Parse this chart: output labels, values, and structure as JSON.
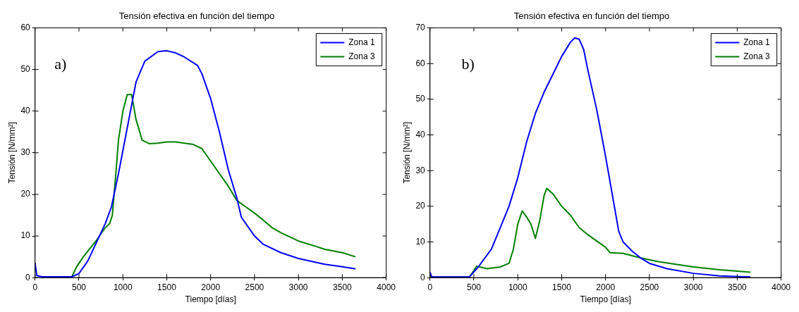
{
  "chart_data": [
    {
      "type": "line",
      "title": "Tensión efectiva en función del tiempo",
      "xlabel": "Tiempo [días]",
      "ylabel": "Tensión [N/mm²]",
      "annotations": [
        "a)"
      ],
      "xlim": [
        0,
        4000
      ],
      "xticks": [
        0,
        500,
        1000,
        1500,
        2000,
        2500,
        3000,
        3500,
        4000
      ],
      "ylim": [
        0,
        60
      ],
      "yticks": [
        0,
        10,
        20,
        30,
        40,
        50,
        60
      ],
      "grid": false,
      "legend": "top right",
      "marker": "none",
      "line_style": "solid",
      "series": [
        {
          "name": "Zona 1",
          "color": "#0000ff",
          "x": [
            0,
            20,
            80,
            420,
            500,
            600,
            700,
            800,
            870,
            950,
            1050,
            1150,
            1250,
            1400,
            1500,
            1600,
            1700,
            1850,
            1900,
            2000,
            2100,
            2200,
            2300,
            2350,
            2400,
            2500,
            2600,
            2800,
            3000,
            3300,
            3500,
            3650
          ],
          "values": [
            3.5,
            0.5,
            0.2,
            0.2,
            1,
            4,
            8.5,
            13,
            17,
            25,
            36,
            47,
            52,
            54.3,
            54.5,
            54,
            53,
            51,
            49,
            43,
            35,
            26,
            19,
            14.5,
            13,
            10,
            8,
            6,
            4.6,
            3.2,
            2.6,
            2.1
          ]
        },
        {
          "name": "Zona 3",
          "color": "#008000",
          "x": [
            100,
            420,
            470,
            550,
            700,
            800,
            850,
            880,
            920,
            950,
            1000,
            1050,
            1100,
            1150,
            1220,
            1300,
            1400,
            1500,
            1600,
            1800,
            1900,
            2000,
            2100,
            2200,
            2300,
            2400,
            2500,
            2600,
            2700,
            2800,
            3000,
            3200,
            3300,
            3500,
            3650
          ],
          "values": [
            0.2,
            0.2,
            2.5,
            5,
            9,
            12,
            13,
            15,
            25,
            33,
            40,
            44,
            44,
            38,
            33,
            32.2,
            32.3,
            32.6,
            32.6,
            32,
            31,
            28,
            25,
            22,
            18.5,
            17,
            15.5,
            13.8,
            12,
            10.8,
            8.8,
            7.5,
            6.8,
            6,
            5
          ]
        }
      ]
    },
    {
      "type": "line",
      "title": "Tensión efectiva en función del tiempo",
      "xlabel": "Tiempo [días]",
      "ylabel": "Tensión [N/mm²]",
      "annotations": [
        "b)"
      ],
      "xlim": [
        0,
        4000
      ],
      "xticks": [
        0,
        500,
        1000,
        1500,
        2000,
        2500,
        3000,
        3500,
        4000
      ],
      "ylim": [
        0,
        70
      ],
      "yticks": [
        0,
        10,
        20,
        30,
        40,
        50,
        60,
        70
      ],
      "grid": false,
      "legend": "top right",
      "marker": "none",
      "line_style": "solid",
      "series": [
        {
          "name": "Zona 1",
          "color": "#0000ff",
          "x": [
            0,
            20,
            450,
            550,
            700,
            800,
            900,
            1000,
            1100,
            1200,
            1300,
            1400,
            1500,
            1600,
            1650,
            1700,
            1750,
            1800,
            1900,
            2000,
            2100,
            2150,
            2200,
            2300,
            2400,
            2500,
            2700,
            3000,
            3300,
            3650
          ],
          "values": [
            1.5,
            0.2,
            0.2,
            3,
            8,
            14,
            20,
            28,
            38,
            46,
            52,
            57,
            62,
            66,
            67.2,
            66.8,
            64,
            58,
            47,
            34,
            20,
            13,
            10,
            7.5,
            5.5,
            4,
            2.5,
            1.2,
            0.5,
            0.2
          ]
        },
        {
          "name": "Zona 3",
          "color": "#008000",
          "x": [
            0,
            20,
            450,
            500,
            530,
            600,
            650,
            800,
            900,
            950,
            1000,
            1050,
            1100,
            1150,
            1200,
            1250,
            1300,
            1330,
            1400,
            1500,
            1600,
            1700,
            1800,
            2000,
            2050,
            2200,
            2400,
            2600,
            3000,
            3300,
            3650
          ],
          "values": [
            1,
            0.2,
            0.2,
            2,
            3.2,
            2.8,
            2.5,
            3,
            4,
            8,
            15,
            18.7,
            17,
            15,
            11,
            16,
            23,
            25,
            23.5,
            20,
            17.5,
            14,
            12,
            8.5,
            7,
            6.8,
            5.5,
            4.5,
            3,
            2.2,
            1.5
          ]
        }
      ]
    }
  ]
}
